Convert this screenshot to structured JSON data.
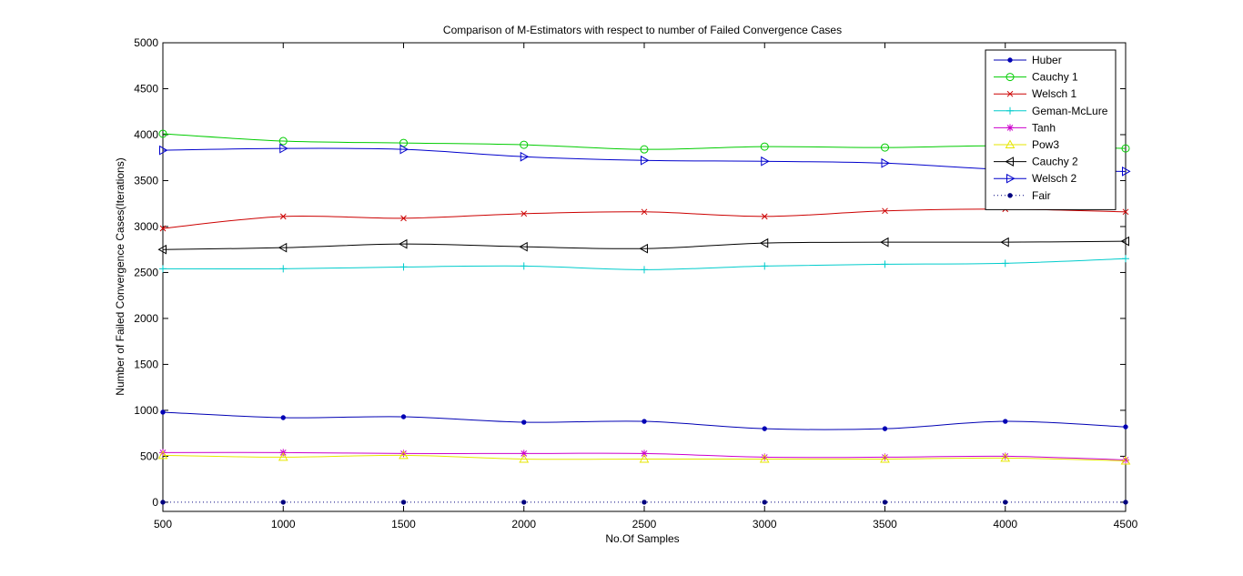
{
  "chart_data": {
    "type": "line",
    "title": "Comparison of M-Estimators with respect to number of Failed Convergence Cases",
    "xlabel": "No.Of Samples",
    "ylabel": "Number of Failed Convergence Cases(Iterations)",
    "xlim": [
      500,
      4500
    ],
    "ylim": [
      -100,
      5000
    ],
    "x_ticks": [
      500,
      1000,
      1500,
      2000,
      2500,
      3000,
      3500,
      4000,
      4500
    ],
    "y_ticks": [
      0,
      500,
      1000,
      1500,
      2000,
      2500,
      3000,
      3500,
      4000,
      4500,
      5000
    ],
    "grid": false,
    "legend_position": "top-right",
    "x": [
      500,
      1000,
      1500,
      2000,
      2500,
      3000,
      3500,
      4000,
      4500
    ],
    "series": [
      {
        "name": "Huber",
        "color": "#0000b4",
        "marker": "dot",
        "dash": false,
        "values": [
          980,
          920,
          930,
          870,
          880,
          800,
          800,
          880,
          820
        ]
      },
      {
        "name": "Cauchy 1",
        "color": "#00cc00",
        "marker": "circle",
        "dash": false,
        "values": [
          4010,
          3930,
          3910,
          3890,
          3840,
          3870,
          3860,
          3880,
          3850
        ]
      },
      {
        "name": "Welsch 1",
        "color": "#cc0000",
        "marker": "x",
        "dash": false,
        "values": [
          2980,
          3110,
          3090,
          3140,
          3160,
          3110,
          3170,
          3190,
          3160
        ]
      },
      {
        "name": "Geman-McLure",
        "color": "#00cccc",
        "marker": "plus",
        "dash": false,
        "values": [
          2540,
          2540,
          2560,
          2570,
          2530,
          2570,
          2590,
          2600,
          2650
        ]
      },
      {
        "name": "Tanh",
        "color": "#cc00cc",
        "marker": "star",
        "dash": false,
        "values": [
          540,
          540,
          530,
          530,
          530,
          490,
          490,
          500,
          460
        ]
      },
      {
        "name": "Pow3",
        "color": "#e6e600",
        "marker": "triangle-up",
        "dash": false,
        "values": [
          510,
          490,
          510,
          470,
          470,
          470,
          470,
          480,
          450
        ]
      },
      {
        "name": "Cauchy 2",
        "color": "#000000",
        "marker": "triangle-left",
        "dash": false,
        "values": [
          2750,
          2770,
          2810,
          2780,
          2760,
          2820,
          2830,
          2830,
          2840
        ]
      },
      {
        "name": "Welsch 2",
        "color": "#0000cc",
        "marker": "triangle-right",
        "dash": false,
        "values": [
          3830,
          3850,
          3840,
          3760,
          3720,
          3710,
          3690,
          3620,
          3600
        ]
      },
      {
        "name": "Fair",
        "color": "#00007f",
        "marker": "dot",
        "dash": true,
        "values": [
          0,
          0,
          0,
          0,
          0,
          0,
          0,
          0,
          0
        ]
      }
    ]
  }
}
